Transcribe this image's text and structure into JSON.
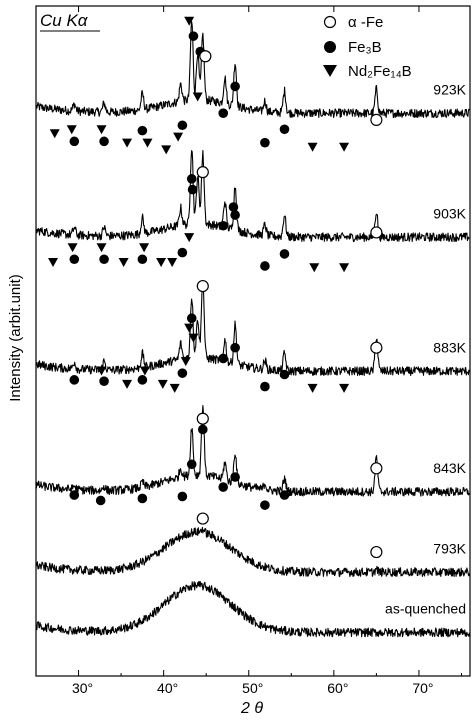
{
  "chart_data": {
    "type": "line",
    "title": "Cu Kα",
    "xlabel": "2 θ",
    "ylabel": "Intensity  (arbit.unit)",
    "xlim": [
      25,
      76
    ],
    "x_ticks": [
      {
        "value": 30,
        "label": "30°"
      },
      {
        "value": 40,
        "label": "40°"
      },
      {
        "value": 50,
        "label": "50°"
      },
      {
        "value": 60,
        "label": "60°"
      },
      {
        "value": 70,
        "label": "70°"
      }
    ],
    "grid": false,
    "legend_position": "top-right",
    "legend": [
      {
        "marker": "open-circle",
        "label": "α -Fe"
      },
      {
        "marker": "filled-circle",
        "label": "Fe₃B"
      },
      {
        "marker": "filled-triangle",
        "label": "Nd₂Fe₁₄B"
      }
    ],
    "series": [
      {
        "name": "923K",
        "baseline": 0.84,
        "amorphous_hump": 0.02,
        "peaks": [
          {
            "x": 43.3,
            "h": 0.9
          },
          {
            "x": 44.6,
            "h": 0.75
          },
          {
            "x": 44.0,
            "h": 0.55
          },
          {
            "x": 48.4,
            "h": 0.5
          },
          {
            "x": 47.2,
            "h": 0.3
          },
          {
            "x": 65.0,
            "h": 0.28
          },
          {
            "x": 54.2,
            "h": 0.25
          },
          {
            "x": 51.9,
            "h": 0.12
          },
          {
            "x": 37.5,
            "h": 0.18
          },
          {
            "x": 42.0,
            "h": 0.2
          },
          {
            "x": 33.0,
            "h": 0.1
          },
          {
            "x": 29.5,
            "h": 0.08
          }
        ],
        "markers": [
          {
            "x": 43.0,
            "type": "triangle",
            "y": 0.978
          },
          {
            "x": 43.5,
            "type": "filled",
            "y": 0.955
          },
          {
            "x": 44.3,
            "type": "filled",
            "y": 0.932
          },
          {
            "x": 44.9,
            "type": "open",
            "y": 0.925
          },
          {
            "x": 44.0,
            "type": "triangle",
            "y": 0.865
          },
          {
            "x": 48.4,
            "type": "filled",
            "y": 0.88
          },
          {
            "x": 47.0,
            "type": "filled",
            "y": 0.84
          },
          {
            "x": 54.2,
            "type": "filled",
            "y": 0.816
          },
          {
            "x": 65.0,
            "type": "open",
            "y": 0.83
          },
          {
            "x": 51.9,
            "type": "filled",
            "y": 0.796
          },
          {
            "x": 42.2,
            "type": "filled",
            "y": 0.822
          },
          {
            "x": 41.7,
            "type": "triangle",
            "y": 0.805
          },
          {
            "x": 40.3,
            "type": "triangle",
            "y": 0.786
          },
          {
            "x": 37.5,
            "type": "filled",
            "y": 0.814
          },
          {
            "x": 38.1,
            "type": "triangle",
            "y": 0.796
          },
          {
            "x": 35.7,
            "type": "triangle",
            "y": 0.796
          },
          {
            "x": 32.7,
            "type": "triangle",
            "y": 0.816
          },
          {
            "x": 33.0,
            "type": "filled",
            "y": 0.798
          },
          {
            "x": 29.5,
            "type": "filled",
            "y": 0.798
          },
          {
            "x": 29.2,
            "type": "triangle",
            "y": 0.816
          },
          {
            "x": 27.2,
            "type": "triangle",
            "y": 0.81
          },
          {
            "x": 57.5,
            "type": "triangle",
            "y": 0.79
          },
          {
            "x": 61.2,
            "type": "triangle",
            "y": 0.79
          }
        ]
      },
      {
        "name": "903K",
        "baseline": 0.655,
        "amorphous_hump": 0.02,
        "peaks": [
          {
            "x": 43.3,
            "h": 0.88
          },
          {
            "x": 44.6,
            "h": 0.8
          },
          {
            "x": 44.0,
            "h": 0.55
          },
          {
            "x": 48.4,
            "h": 0.5
          },
          {
            "x": 47.2,
            "h": 0.3
          },
          {
            "x": 65.0,
            "h": 0.3
          },
          {
            "x": 54.2,
            "h": 0.25
          },
          {
            "x": 51.9,
            "h": 0.12
          },
          {
            "x": 37.5,
            "h": 0.18
          },
          {
            "x": 42.0,
            "h": 0.2
          },
          {
            "x": 33.0,
            "h": 0.1
          },
          {
            "x": 29.5,
            "h": 0.08
          }
        ],
        "markers": [
          {
            "x": 43.3,
            "type": "filled",
            "y": 0.742
          },
          {
            "x": 43.4,
            "type": "filled",
            "y": 0.726
          },
          {
            "x": 44.6,
            "type": "open",
            "y": 0.752
          },
          {
            "x": 48.4,
            "type": "filled",
            "y": 0.688
          },
          {
            "x": 48.2,
            "type": "filled",
            "y": 0.7
          },
          {
            "x": 47.0,
            "type": "filled",
            "y": 0.672
          },
          {
            "x": 54.2,
            "type": "filled",
            "y": 0.63
          },
          {
            "x": 65.0,
            "type": "open",
            "y": 0.662
          },
          {
            "x": 51.9,
            "type": "filled",
            "y": 0.612
          },
          {
            "x": 42.2,
            "type": "filled",
            "y": 0.632
          },
          {
            "x": 43.0,
            "type": "triangle",
            "y": 0.655
          },
          {
            "x": 41.0,
            "type": "triangle",
            "y": 0.618
          },
          {
            "x": 39.7,
            "type": "triangle",
            "y": 0.618
          },
          {
            "x": 37.5,
            "type": "filled",
            "y": 0.622
          },
          {
            "x": 37.7,
            "type": "triangle",
            "y": 0.64
          },
          {
            "x": 35.3,
            "type": "triangle",
            "y": 0.618
          },
          {
            "x": 32.7,
            "type": "triangle",
            "y": 0.64
          },
          {
            "x": 33.0,
            "type": "filled",
            "y": 0.622
          },
          {
            "x": 29.5,
            "type": "filled",
            "y": 0.622
          },
          {
            "x": 29.3,
            "type": "triangle",
            "y": 0.64
          },
          {
            "x": 27.0,
            "type": "triangle",
            "y": 0.618
          },
          {
            "x": 57.7,
            "type": "triangle",
            "y": 0.61
          },
          {
            "x": 61.2,
            "type": "triangle",
            "y": 0.61
          }
        ]
      },
      {
        "name": "883K",
        "baseline": 0.455,
        "amorphous_hump": 0.02,
        "peaks": [
          {
            "x": 44.6,
            "h": 0.9
          },
          {
            "x": 43.3,
            "h": 0.7
          },
          {
            "x": 44.0,
            "h": 0.45
          },
          {
            "x": 48.4,
            "h": 0.45
          },
          {
            "x": 47.2,
            "h": 0.25
          },
          {
            "x": 65.0,
            "h": 0.4
          },
          {
            "x": 54.2,
            "h": 0.2
          },
          {
            "x": 51.9,
            "h": 0.1
          },
          {
            "x": 37.5,
            "h": 0.16
          },
          {
            "x": 42.0,
            "h": 0.18
          },
          {
            "x": 33.0,
            "h": 0.1
          },
          {
            "x": 29.5,
            "h": 0.08
          }
        ],
        "markers": [
          {
            "x": 44.6,
            "type": "open",
            "y": 0.582
          },
          {
            "x": 43.3,
            "type": "filled",
            "y": 0.534
          },
          {
            "x": 43.0,
            "type": "triangle",
            "y": 0.52
          },
          {
            "x": 43.5,
            "type": "triangle",
            "y": 0.505
          },
          {
            "x": 48.4,
            "type": "filled",
            "y": 0.49
          },
          {
            "x": 47.0,
            "type": "filled",
            "y": 0.474
          },
          {
            "x": 54.2,
            "type": "filled",
            "y": 0.45
          },
          {
            "x": 65.0,
            "type": "open",
            "y": 0.49
          },
          {
            "x": 51.9,
            "type": "filled",
            "y": 0.432
          },
          {
            "x": 42.2,
            "type": "filled",
            "y": 0.452
          },
          {
            "x": 42.6,
            "type": "triangle",
            "y": 0.47
          },
          {
            "x": 41.3,
            "type": "triangle",
            "y": 0.43
          },
          {
            "x": 39.9,
            "type": "triangle",
            "y": 0.436
          },
          {
            "x": 37.5,
            "type": "filled",
            "y": 0.442
          },
          {
            "x": 37.8,
            "type": "triangle",
            "y": 0.456
          },
          {
            "x": 35.7,
            "type": "triangle",
            "y": 0.436
          },
          {
            "x": 32.7,
            "type": "triangle",
            "y": 0.456
          },
          {
            "x": 33.0,
            "type": "filled",
            "y": 0.44
          },
          {
            "x": 29.5,
            "type": "filled",
            "y": 0.442
          },
          {
            "x": 57.5,
            "type": "triangle",
            "y": 0.43
          },
          {
            "x": 61.2,
            "type": "triangle",
            "y": 0.43
          }
        ]
      },
      {
        "name": "843K",
        "baseline": 0.275,
        "amorphous_hump": 0.025,
        "peaks": [
          {
            "x": 44.6,
            "h": 0.8
          },
          {
            "x": 43.3,
            "h": 0.55
          },
          {
            "x": 48.4,
            "h": 0.35
          },
          {
            "x": 47.2,
            "h": 0.2
          },
          {
            "x": 65.0,
            "h": 0.4
          },
          {
            "x": 54.2,
            "h": 0.15
          },
          {
            "x": 51.9,
            "h": 0.07
          },
          {
            "x": 42.0,
            "h": 0.1
          },
          {
            "x": 37.5,
            "h": 0.06
          },
          {
            "x": 33.0,
            "h": 0.05
          },
          {
            "x": 29.5,
            "h": 0.04
          }
        ],
        "markers": [
          {
            "x": 44.6,
            "type": "open",
            "y": 0.384
          },
          {
            "x": 44.6,
            "type": "filled",
            "y": 0.368
          },
          {
            "x": 43.3,
            "type": "filled",
            "y": 0.316
          },
          {
            "x": 48.4,
            "type": "filled",
            "y": 0.297
          },
          {
            "x": 47.0,
            "type": "filled",
            "y": 0.282
          },
          {
            "x": 54.2,
            "type": "filled",
            "y": 0.27
          },
          {
            "x": 65.0,
            "type": "open",
            "y": 0.31
          },
          {
            "x": 51.9,
            "type": "filled",
            "y": 0.255
          },
          {
            "x": 42.2,
            "type": "filled",
            "y": 0.268
          },
          {
            "x": 37.5,
            "type": "filled",
            "y": 0.265
          },
          {
            "x": 32.6,
            "type": "filled",
            "y": 0.262
          },
          {
            "x": 29.5,
            "type": "filled",
            "y": 0.27
          }
        ]
      },
      {
        "name": "793K",
        "baseline": 0.155,
        "amorphous_hump": 0.06,
        "peaks": [
          {
            "x": 44.6,
            "h": 0.04
          },
          {
            "x": 65.0,
            "h": 0.03
          }
        ],
        "markers": [
          {
            "x": 44.6,
            "type": "open",
            "y": 0.235
          },
          {
            "x": 65.0,
            "type": "open",
            "y": 0.185
          }
        ]
      },
      {
        "name": "as-quenched",
        "baseline": 0.065,
        "amorphous_hump": 0.07,
        "peaks": [],
        "markers": []
      }
    ]
  }
}
